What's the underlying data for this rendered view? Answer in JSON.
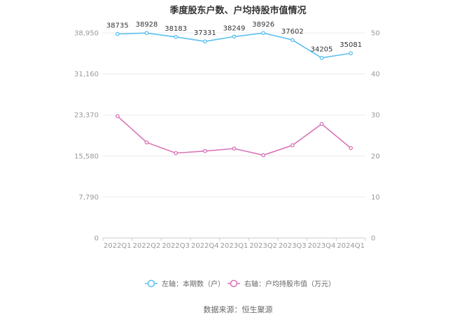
{
  "title": "季度股东户数、户均持股市值情况",
  "source": "数据来源：恒生聚源",
  "legend": [
    {
      "label": "左轴：本期数（户）",
      "color": "#5bc0f0"
    },
    {
      "label": "右轴：户均持股市值（万元）",
      "color": "#d973b8"
    }
  ],
  "chart_data": {
    "type": "line",
    "categories": [
      "2022Q1",
      "2022Q2",
      "2022Q3",
      "2022Q4",
      "2023Q1",
      "2023Q2",
      "2023Q3",
      "2023Q4",
      "2024Q1"
    ],
    "series": [
      {
        "name": "左轴：本期数（户）",
        "axis": "left",
        "color": "#5bc0f0",
        "values": [
          38735,
          38928,
          38183,
          37331,
          38249,
          38926,
          37602,
          34205,
          35081
        ],
        "data_labels": [
          "38735",
          "38928",
          "38183",
          "37331",
          "38249",
          "38926",
          "37602",
          "34205",
          "35081"
        ]
      },
      {
        "name": "右轴：户均持股市值（万元）",
        "axis": "right",
        "color": "#d973b8",
        "values": [
          29.7,
          23.3,
          20.7,
          21.2,
          21.8,
          20.2,
          22.6,
          27.8,
          21.9
        ]
      }
    ],
    "left_axis": {
      "ticks": [
        0,
        7790,
        15580,
        23370,
        31160,
        38950
      ],
      "tick_labels": [
        "0",
        "7,790",
        "15,580",
        "23,370",
        "31,160",
        "38,950"
      ],
      "ylim": [
        0,
        38950
      ]
    },
    "right_axis": {
      "ticks": [
        0,
        10,
        20,
        30,
        40,
        50
      ],
      "tick_labels": [
        "0",
        "10",
        "20",
        "30",
        "40",
        "50"
      ],
      "ylim": [
        0,
        50
      ]
    },
    "grid": true,
    "legend_position": "bottom"
  }
}
